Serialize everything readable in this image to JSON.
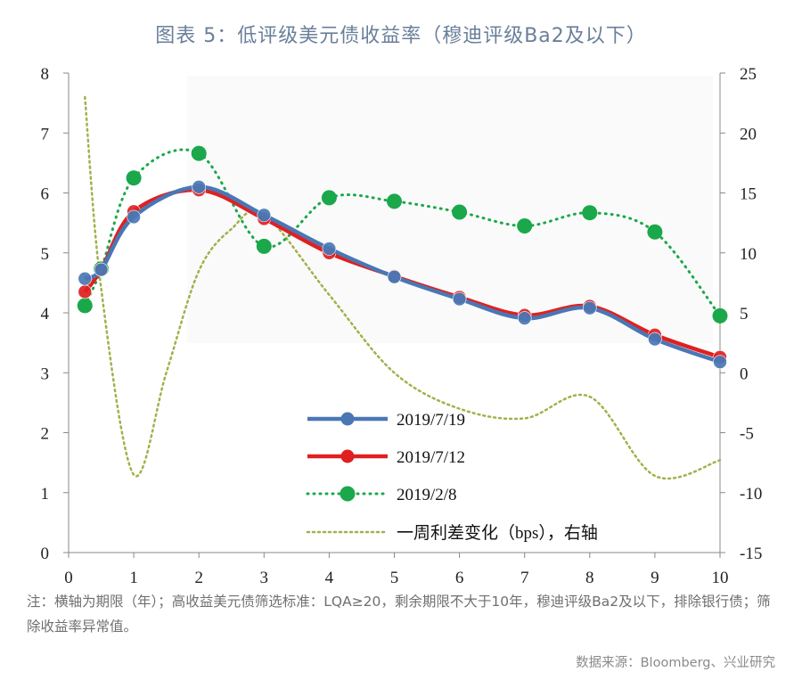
{
  "title": "图表 5：低评级美元债收益率（穆迪评级Ba2及以下）",
  "note": "注：横轴为期限（年）；高收益美元债筛选标准：LQA≥20，剩余期限不大于10年，穆迪评级Ba2及以下，排除银行债；筛除收益率异常值。",
  "source": "数据来源：Bloomberg、兴业研究",
  "chart_data": {
    "type": "line",
    "x_ticks": [
      "0",
      "1",
      "2",
      "3",
      "4",
      "5",
      "6",
      "7",
      "8",
      "9",
      "10"
    ],
    "y_left_ticks": [
      "0",
      "1",
      "2",
      "3",
      "4",
      "5",
      "6",
      "7",
      "8"
    ],
    "y_right_ticks": [
      "-15",
      "-10",
      "-5",
      "0",
      "5",
      "10",
      "15",
      "20",
      "25"
    ],
    "xlim": [
      0,
      10
    ],
    "ylim_left": [
      0,
      8
    ],
    "ylim_right": [
      -15,
      25
    ],
    "grid": false,
    "legend_position": "bottom-center",
    "series": [
      {
        "name": "2019/7/19",
        "axis": "left",
        "color": "#4a77b4",
        "style": "solid-marker",
        "x": [
          0.25,
          0.5,
          1,
          2,
          3,
          4,
          5,
          6,
          7,
          8,
          9,
          10
        ],
        "y": [
          4.57,
          4.72,
          5.6,
          6.1,
          5.63,
          5.07,
          4.6,
          4.23,
          3.91,
          4.08,
          3.56,
          3.18
        ]
      },
      {
        "name": "2019/7/12",
        "axis": "left",
        "color": "#e02020",
        "style": "solid-marker",
        "x": [
          0.25,
          0.5,
          1,
          2,
          3,
          4,
          5,
          6,
          7,
          8,
          9,
          10
        ],
        "y": [
          4.35,
          4.72,
          5.69,
          6.05,
          5.57,
          5.0,
          4.61,
          4.26,
          3.96,
          4.11,
          3.63,
          3.26
        ]
      },
      {
        "name": "2019/2/8",
        "axis": "left",
        "color": "#1aa84a",
        "style": "dotted-marker",
        "x": [
          0.25,
          0.5,
          1,
          2,
          3,
          4,
          5,
          6,
          7,
          8,
          9,
          10
        ],
        "y": [
          4.12,
          4.73,
          6.25,
          6.66,
          5.11,
          5.92,
          5.86,
          5.68,
          5.45,
          5.67,
          5.35,
          3.95
        ]
      },
      {
        "name": "一周利差变化（bps），右轴",
        "axis": "right",
        "color": "#a3b04a",
        "style": "dotted-curve",
        "x": [
          0.25,
          0.5,
          1,
          1.5,
          2,
          2.5,
          3,
          4,
          5,
          6,
          7,
          8,
          9,
          10
        ],
        "y": [
          23,
          7,
          -8.5,
          0,
          8.5,
          12,
          13.2,
          6.5,
          0,
          -3,
          -3.8,
          -2,
          -8.6,
          -7.3
        ]
      }
    ]
  }
}
